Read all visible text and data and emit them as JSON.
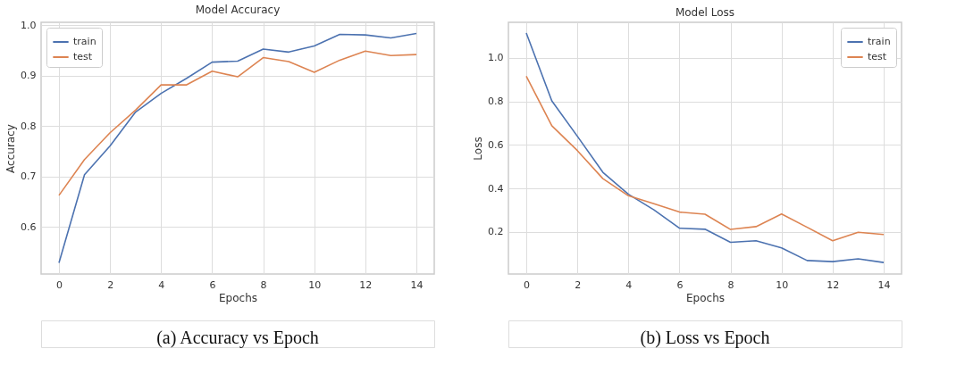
{
  "chart_data": [
    {
      "type": "line",
      "title": "Model Accuracy",
      "xlabel": "Epochs",
      "ylabel": "Accuracy",
      "x": [
        0,
        1,
        2,
        3,
        4,
        5,
        6,
        7,
        8,
        9,
        10,
        11,
        12,
        13,
        14
      ],
      "series": [
        {
          "name": "train",
          "color": "#4c72b0",
          "values": [
            0.529,
            0.704,
            0.761,
            0.828,
            0.865,
            0.895,
            0.927,
            0.929,
            0.953,
            0.947,
            0.959,
            0.982,
            0.981,
            0.975,
            0.984
          ]
        },
        {
          "name": "test",
          "color": "#dd8452",
          "values": [
            0.663,
            0.734,
            0.787,
            0.832,
            0.882,
            0.882,
            0.909,
            0.898,
            0.936,
            0.928,
            0.907,
            0.931,
            0.949,
            0.94,
            0.942
          ]
        }
      ],
      "xlim": [
        -0.7,
        14.7
      ],
      "xticks": [
        0,
        2,
        4,
        6,
        8,
        10,
        12,
        14
      ],
      "ylim": [
        0.507,
        1.006
      ],
      "yticks": [
        0.6,
        0.7,
        0.8,
        0.9,
        {
          "value": 1.0,
          "label": "1.0"
        }
      ],
      "grid": true,
      "legend": "top left",
      "marker": "none",
      "line_style": "solid",
      "annotations": [
        "(a) Accuracy vs Epoch"
      ]
    },
    {
      "type": "line",
      "title": "Model Loss",
      "xlabel": "Epochs",
      "ylabel": "Loss",
      "x": [
        0,
        1,
        2,
        3,
        4,
        5,
        6,
        7,
        8,
        9,
        10,
        11,
        12,
        13,
        14
      ],
      "series": [
        {
          "name": "train",
          "color": "#4c72b0",
          "values": [
            1.115,
            0.803,
            0.64,
            0.474,
            0.373,
            0.301,
            0.217,
            0.212,
            0.152,
            0.159,
            0.126,
            0.068,
            0.063,
            0.076,
            0.059
          ]
        },
        {
          "name": "test",
          "color": "#dd8452",
          "values": [
            0.916,
            0.688,
            0.574,
            0.445,
            0.366,
            0.329,
            0.291,
            0.281,
            0.211,
            0.224,
            0.282,
            0.221,
            0.159,
            0.198,
            0.188
          ]
        }
      ],
      "xlim": [
        -0.7,
        14.7
      ],
      "xticks": [
        0,
        2,
        4,
        6,
        8,
        10,
        12,
        14
      ],
      "ylim": [
        0.006,
        1.164
      ],
      "yticks": [
        0.2,
        0.4,
        0.6,
        0.8,
        {
          "value": 1.0,
          "label": "1.0"
        }
      ],
      "grid": true,
      "legend": "top right",
      "marker": "none",
      "line_style": "solid",
      "annotations": [
        "(b) Loss vs Epoch"
      ]
    }
  ]
}
